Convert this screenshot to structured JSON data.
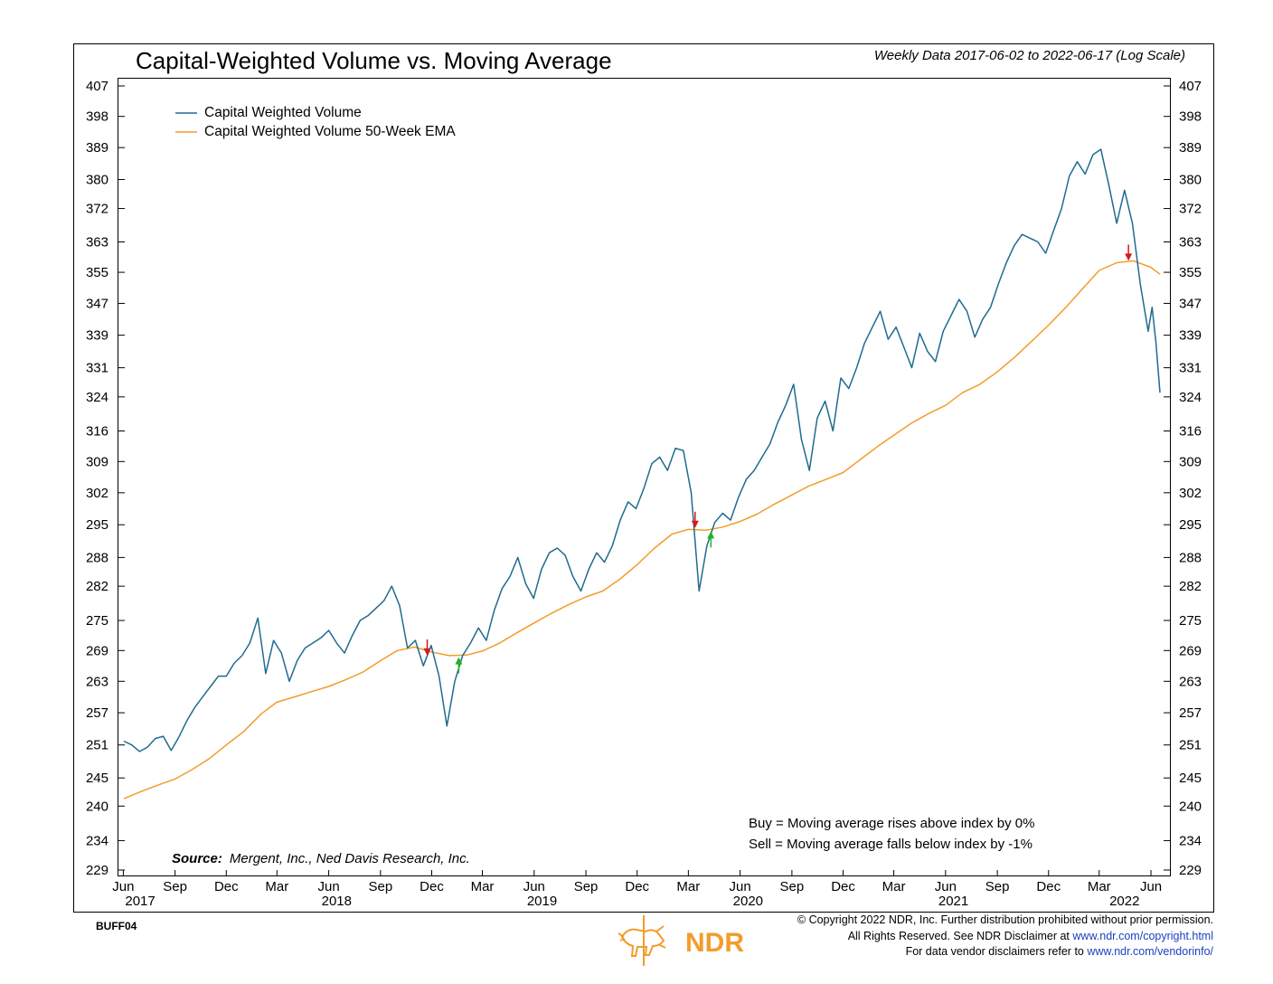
{
  "chart_data": {
    "type": "line",
    "title": "Capital-Weighted Volume vs. Moving Average",
    "subtitle": "Weekly Data 2017-06-02 to 2022-06-17 (Log Scale)",
    "scale": "log",
    "ylim": [
      229,
      407
    ],
    "y_ticks": [
      "407",
      "398",
      "389",
      "380",
      "372",
      "363",
      "355",
      "347",
      "339",
      "331",
      "324",
      "316",
      "309",
      "302",
      "295",
      "288",
      "282",
      "275",
      "269",
      "263",
      "257",
      "251",
      "245",
      "240",
      "234",
      "229"
    ],
    "x_range": [
      "2017-06-02",
      "2022-06-17"
    ],
    "x_ticks": [
      {
        "label": "Jun",
        "date": "2017-06-01"
      },
      {
        "label": "Sep",
        "date": "2017-09-01"
      },
      {
        "label": "Dec",
        "date": "2017-12-01"
      },
      {
        "label": "Mar",
        "date": "2018-03-01"
      },
      {
        "label": "Jun",
        "date": "2018-06-01"
      },
      {
        "label": "Sep",
        "date": "2018-09-01"
      },
      {
        "label": "Dec",
        "date": "2018-12-01"
      },
      {
        "label": "Mar",
        "date": "2019-03-01"
      },
      {
        "label": "Jun",
        "date": "2019-06-01"
      },
      {
        "label": "Sep",
        "date": "2019-09-01"
      },
      {
        "label": "Dec",
        "date": "2019-12-01"
      },
      {
        "label": "Mar",
        "date": "2020-03-01"
      },
      {
        "label": "Jun",
        "date": "2020-06-01"
      },
      {
        "label": "Sep",
        "date": "2020-09-01"
      },
      {
        "label": "Dec",
        "date": "2020-12-01"
      },
      {
        "label": "Mar",
        "date": "2021-03-01"
      },
      {
        "label": "Jun",
        "date": "2021-06-01"
      },
      {
        "label": "Sep",
        "date": "2021-09-01"
      },
      {
        "label": "Dec",
        "date": "2021-12-01"
      },
      {
        "label": "Mar",
        "date": "2022-03-01"
      },
      {
        "label": "Jun",
        "date": "2022-06-01"
      }
    ],
    "year_labels": [
      {
        "label": "2017",
        "date": "2017-07-01"
      },
      {
        "label": "2018",
        "date": "2018-06-15"
      },
      {
        "label": "2019",
        "date": "2019-06-15"
      },
      {
        "label": "2020",
        "date": "2020-06-15"
      },
      {
        "label": "2021",
        "date": "2021-06-15"
      },
      {
        "label": "2022",
        "date": "2022-04-15"
      }
    ],
    "legend_position": "top-left",
    "grid": false,
    "series": [
      {
        "name": "Capital Weighted Volume",
        "color": "#1f6b8f",
        "points": [
          [
            "2017-06-02",
            251.7
          ],
          [
            "2017-06-16",
            251.0
          ],
          [
            "2017-06-30",
            249.8
          ],
          [
            "2017-07-14",
            250.6
          ],
          [
            "2017-07-28",
            252.2
          ],
          [
            "2017-08-11",
            252.6
          ],
          [
            "2017-08-25",
            250.0
          ],
          [
            "2017-09-08",
            252.5
          ],
          [
            "2017-09-22",
            255.5
          ],
          [
            "2017-10-06",
            258.0
          ],
          [
            "2017-10-20",
            260.0
          ],
          [
            "2017-11-03",
            262.0
          ],
          [
            "2017-11-17",
            264.0
          ],
          [
            "2017-12-01",
            264.0
          ],
          [
            "2017-12-15",
            266.5
          ],
          [
            "2017-12-29",
            268.0
          ],
          [
            "2018-01-12",
            270.5
          ],
          [
            "2018-01-26",
            275.5
          ],
          [
            "2018-02-09",
            264.5
          ],
          [
            "2018-02-23",
            271.0
          ],
          [
            "2018-03-09",
            268.5
          ],
          [
            "2018-03-23",
            263.0
          ],
          [
            "2018-04-06",
            267.0
          ],
          [
            "2018-04-20",
            269.5
          ],
          [
            "2018-05-04",
            270.5
          ],
          [
            "2018-05-18",
            271.5
          ],
          [
            "2018-06-01",
            273.0
          ],
          [
            "2018-06-15",
            270.5
          ],
          [
            "2018-06-29",
            268.5
          ],
          [
            "2018-07-13",
            272.0
          ],
          [
            "2018-07-27",
            275.0
          ],
          [
            "2018-08-10",
            276.0
          ],
          [
            "2018-08-24",
            277.5
          ],
          [
            "2018-09-07",
            279.0
          ],
          [
            "2018-09-21",
            282.0
          ],
          [
            "2018-10-05",
            278.0
          ],
          [
            "2018-10-19",
            269.5
          ],
          [
            "2018-11-02",
            271.0
          ],
          [
            "2018-11-16",
            266.0
          ],
          [
            "2018-11-30",
            270.0
          ],
          [
            "2018-12-14",
            264.0
          ],
          [
            "2018-12-28",
            254.5
          ],
          [
            "2019-01-11",
            263.0
          ],
          [
            "2019-01-25",
            268.0
          ],
          [
            "2019-02-08",
            270.5
          ],
          [
            "2019-02-22",
            273.5
          ],
          [
            "2019-03-08",
            271.0
          ],
          [
            "2019-03-22",
            277.0
          ],
          [
            "2019-04-05",
            281.5
          ],
          [
            "2019-04-19",
            284.0
          ],
          [
            "2019-05-03",
            288.0
          ],
          [
            "2019-05-17",
            282.5
          ],
          [
            "2019-05-31",
            279.5
          ],
          [
            "2019-06-14",
            285.5
          ],
          [
            "2019-06-28",
            289.0
          ],
          [
            "2019-07-12",
            290.0
          ],
          [
            "2019-07-26",
            288.5
          ],
          [
            "2019-08-09",
            284.0
          ],
          [
            "2019-08-23",
            281.0
          ],
          [
            "2019-09-06",
            285.5
          ],
          [
            "2019-09-20",
            289.0
          ],
          [
            "2019-10-04",
            287.0
          ],
          [
            "2019-10-18",
            290.5
          ],
          [
            "2019-11-01",
            296.0
          ],
          [
            "2019-11-15",
            300.0
          ],
          [
            "2019-11-29",
            298.5
          ],
          [
            "2019-12-13",
            303.0
          ],
          [
            "2019-12-27",
            308.5
          ],
          [
            "2020-01-10",
            310.0
          ],
          [
            "2020-01-24",
            307.0
          ],
          [
            "2020-02-07",
            312.0
          ],
          [
            "2020-02-21",
            311.5
          ],
          [
            "2020-03-06",
            302.0
          ],
          [
            "2020-03-20",
            281.0
          ],
          [
            "2020-04-03",
            290.5
          ],
          [
            "2020-04-17",
            295.5
          ],
          [
            "2020-05-01",
            297.5
          ],
          [
            "2020-05-15",
            296.0
          ],
          [
            "2020-05-29",
            301.0
          ],
          [
            "2020-06-12",
            305.0
          ],
          [
            "2020-06-26",
            307.0
          ],
          [
            "2020-07-10",
            310.0
          ],
          [
            "2020-07-24",
            313.0
          ],
          [
            "2020-08-07",
            318.0
          ],
          [
            "2020-08-21",
            322.0
          ],
          [
            "2020-09-04",
            327.0
          ],
          [
            "2020-09-18",
            314.0
          ],
          [
            "2020-10-02",
            307.0
          ],
          [
            "2020-10-16",
            319.0
          ],
          [
            "2020-10-30",
            323.0
          ],
          [
            "2020-11-13",
            316.0
          ],
          [
            "2020-11-27",
            328.5
          ],
          [
            "2020-12-11",
            326.0
          ],
          [
            "2020-12-25",
            331.0
          ],
          [
            "2021-01-08",
            337.0
          ],
          [
            "2021-01-22",
            341.0
          ],
          [
            "2021-02-05",
            345.0
          ],
          [
            "2021-02-19",
            338.0
          ],
          [
            "2021-03-05",
            341.0
          ],
          [
            "2021-03-19",
            336.0
          ],
          [
            "2021-04-02",
            331.0
          ],
          [
            "2021-04-16",
            339.5
          ],
          [
            "2021-04-30",
            335.0
          ],
          [
            "2021-05-14",
            332.5
          ],
          [
            "2021-05-28",
            340.0
          ],
          [
            "2021-06-11",
            344.0
          ],
          [
            "2021-06-25",
            348.0
          ],
          [
            "2021-07-09",
            345.0
          ],
          [
            "2021-07-23",
            338.5
          ],
          [
            "2021-08-06",
            343.0
          ],
          [
            "2021-08-20",
            346.0
          ],
          [
            "2021-09-03",
            352.0
          ],
          [
            "2021-09-17",
            357.5
          ],
          [
            "2021-10-01",
            362.0
          ],
          [
            "2021-10-15",
            365.0
          ],
          [
            "2021-10-29",
            364.0
          ],
          [
            "2021-11-12",
            363.0
          ],
          [
            "2021-11-26",
            360.0
          ],
          [
            "2021-12-10",
            366.0
          ],
          [
            "2021-12-24",
            372.0
          ],
          [
            "2022-01-07",
            381.0
          ],
          [
            "2022-01-21",
            385.0
          ],
          [
            "2022-02-04",
            381.5
          ],
          [
            "2022-02-18",
            387.0
          ],
          [
            "2022-03-04",
            388.5
          ],
          [
            "2022-03-18",
            378.5
          ],
          [
            "2022-04-01",
            368.0
          ],
          [
            "2022-04-15",
            377.0
          ],
          [
            "2022-04-29",
            368.0
          ],
          [
            "2022-05-13",
            352.0
          ],
          [
            "2022-05-27",
            340.0
          ],
          [
            "2022-06-03",
            346.0
          ],
          [
            "2022-06-10",
            337.0
          ],
          [
            "2022-06-17",
            325.0
          ]
        ]
      },
      {
        "name": "Capital Weighted Volume 50-Week EMA",
        "color": "#f39c2b",
        "points": [
          [
            "2017-06-02",
            241.3
          ],
          [
            "2017-07-01",
            242.5
          ],
          [
            "2017-08-01",
            243.7
          ],
          [
            "2017-09-01",
            244.8
          ],
          [
            "2017-10-01",
            246.5
          ],
          [
            "2017-11-01",
            248.5
          ],
          [
            "2017-12-01",
            251.0
          ],
          [
            "2018-01-01",
            253.5
          ],
          [
            "2018-02-01",
            256.8
          ],
          [
            "2018-03-01",
            259.0
          ],
          [
            "2018-04-01",
            260.0
          ],
          [
            "2018-05-01",
            261.0
          ],
          [
            "2018-06-01",
            262.0
          ],
          [
            "2018-07-01",
            263.3
          ],
          [
            "2018-08-01",
            264.8
          ],
          [
            "2018-09-01",
            267.0
          ],
          [
            "2018-10-01",
            269.0
          ],
          [
            "2018-11-01",
            269.7
          ],
          [
            "2018-12-01",
            268.7
          ],
          [
            "2019-01-01",
            268.0
          ],
          [
            "2019-02-01",
            268.1
          ],
          [
            "2019-03-01",
            268.9
          ],
          [
            "2019-04-01",
            270.5
          ],
          [
            "2019-05-01",
            272.5
          ],
          [
            "2019-06-01",
            274.5
          ],
          [
            "2019-07-01",
            276.4
          ],
          [
            "2019-08-01",
            278.2
          ],
          [
            "2019-09-01",
            279.8
          ],
          [
            "2019-10-01",
            281.0
          ],
          [
            "2019-11-01",
            283.5
          ],
          [
            "2019-12-01",
            286.5
          ],
          [
            "2020-01-01",
            290.0
          ],
          [
            "2020-02-01",
            293.0
          ],
          [
            "2020-03-01",
            294.0
          ],
          [
            "2020-04-01",
            293.8
          ],
          [
            "2020-05-01",
            294.5
          ],
          [
            "2020-06-01",
            295.7
          ],
          [
            "2020-07-01",
            297.3
          ],
          [
            "2020-08-01",
            299.5
          ],
          [
            "2020-09-01",
            301.5
          ],
          [
            "2020-10-01",
            303.5
          ],
          [
            "2020-11-01",
            305.0
          ],
          [
            "2020-12-01",
            306.5
          ],
          [
            "2021-01-01",
            309.5
          ],
          [
            "2021-02-01",
            312.5
          ],
          [
            "2021-03-01",
            315.0
          ],
          [
            "2021-04-01",
            317.8
          ],
          [
            "2021-05-01",
            320.0
          ],
          [
            "2021-06-01",
            322.0
          ],
          [
            "2021-07-01",
            325.0
          ],
          [
            "2021-08-01",
            327.0
          ],
          [
            "2021-09-01",
            330.0
          ],
          [
            "2021-10-01",
            333.5
          ],
          [
            "2021-11-01",
            337.5
          ],
          [
            "2021-12-01",
            341.5
          ],
          [
            "2022-01-01",
            346.0
          ],
          [
            "2022-02-01",
            351.0
          ],
          [
            "2022-03-01",
            355.5
          ],
          [
            "2022-04-01",
            357.5
          ],
          [
            "2022-05-01",
            358.0
          ],
          [
            "2022-06-01",
            356.3
          ],
          [
            "2022-06-17",
            354.5
          ]
        ]
      }
    ],
    "signals": [
      {
        "type": "sell",
        "date": "2018-11-23",
        "value": 268.0,
        "color": "#d7191c"
      },
      {
        "type": "buy",
        "date": "2019-01-18",
        "value": 267.7,
        "color": "#1eb51e"
      },
      {
        "type": "sell",
        "date": "2020-03-13",
        "value": 294.3,
        "color": "#d7191c"
      },
      {
        "type": "buy",
        "date": "2020-04-10",
        "value": 293.6,
        "color": "#1eb51e"
      },
      {
        "type": "sell",
        "date": "2022-04-22",
        "value": 358.0,
        "color": "#d7191c"
      }
    ],
    "annotations": {
      "buy": "Buy = Moving average rises above index by 0%",
      "sell": "Sell = Moving average falls below index by -1%",
      "source_label": "Source:",
      "source_text": "Mergent, Inc., Ned Davis Research, Inc."
    }
  },
  "footer": {
    "chart_id": "BUFF04",
    "logo_text": "NDR",
    "copyright_line1": "© Copyright 2022 NDR, Inc. Further distribution prohibited without prior permission.",
    "copyright_line2_prefix": "All Rights Reserved. See NDR Disclaimer at ",
    "copyright_line2_link": "www.ndr.com/copyright.html",
    "copyright_line3_prefix": "For data vendor disclaimers refer to ",
    "copyright_line3_link": "www.ndr.com/vendorinfo/"
  }
}
